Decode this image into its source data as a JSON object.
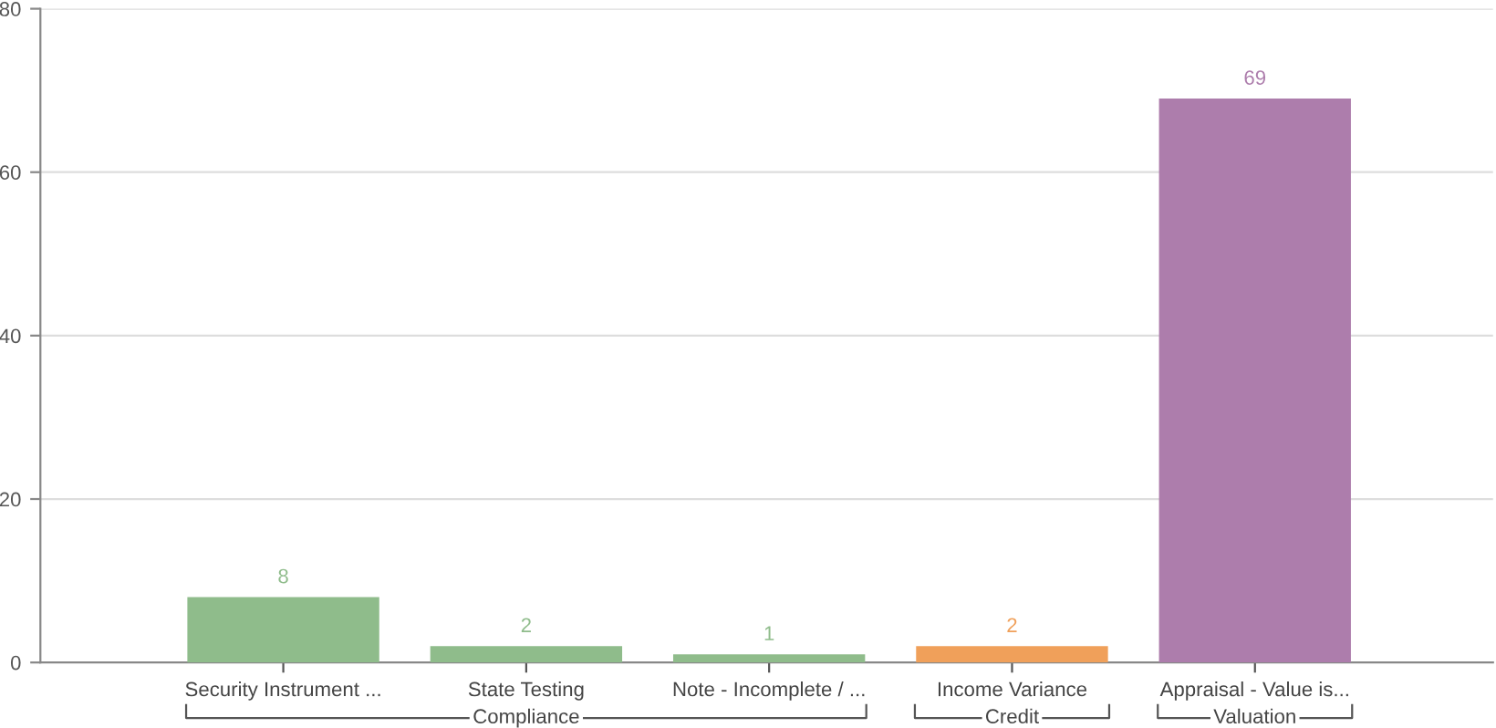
{
  "chart_data": {
    "type": "bar",
    "categories": [
      "Security Instrument ...",
      "State Testing",
      "Note - Incomplete / ...",
      "Income Variance",
      "Appraisal - Value is..."
    ],
    "values": [
      8,
      2,
      1,
      2,
      69
    ],
    "colors": [
      "#8fbc8b",
      "#8fbc8b",
      "#8fbc8b",
      "#f0a05a",
      "#ad7dac"
    ],
    "ylim": [
      0,
      80
    ],
    "yticks": [
      0,
      20,
      40,
      60,
      80
    ],
    "grid": "y",
    "data_labels": true,
    "annotations": [
      "Compliance",
      "Credit",
      "Valuation"
    ]
  }
}
